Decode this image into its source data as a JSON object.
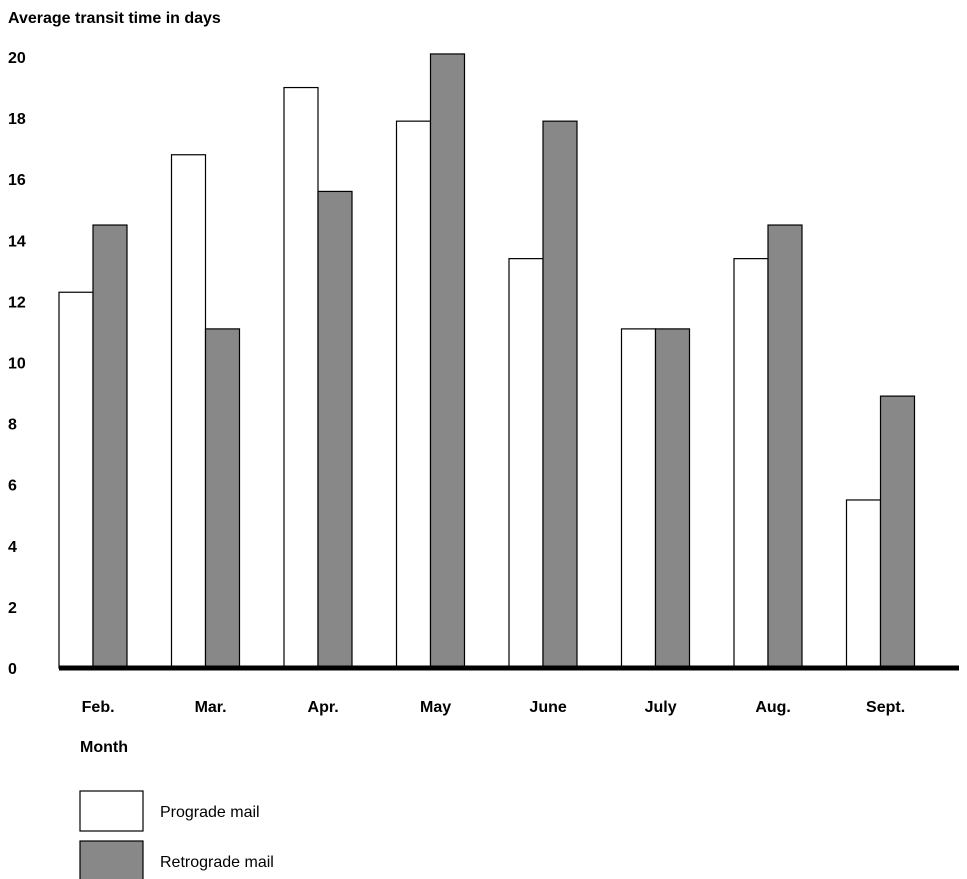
{
  "chart_data": {
    "type": "bar",
    "ylabel": "Average transit time in days",
    "xlabel": "Month",
    "categories": [
      "Feb.",
      "Mar.",
      "Apr.",
      "May",
      "June",
      "July",
      "Aug.",
      "Sept."
    ],
    "series": [
      {
        "name": "Prograde mail",
        "values": [
          12.3,
          16.8,
          19.0,
          17.9,
          13.4,
          11.1,
          13.4,
          5.5
        ],
        "color": "#ffffff"
      },
      {
        "name": "Retrograde mail",
        "values": [
          14.5,
          11.1,
          15.6,
          20.1,
          17.9,
          11.1,
          14.5,
          8.9
        ],
        "color": "#888888"
      }
    ],
    "yticks": [
      0,
      2,
      4,
      6,
      8,
      10,
      12,
      14,
      16,
      18,
      20
    ],
    "ylim": [
      0,
      20
    ],
    "grid": false,
    "legend_position": "bottom-left"
  }
}
